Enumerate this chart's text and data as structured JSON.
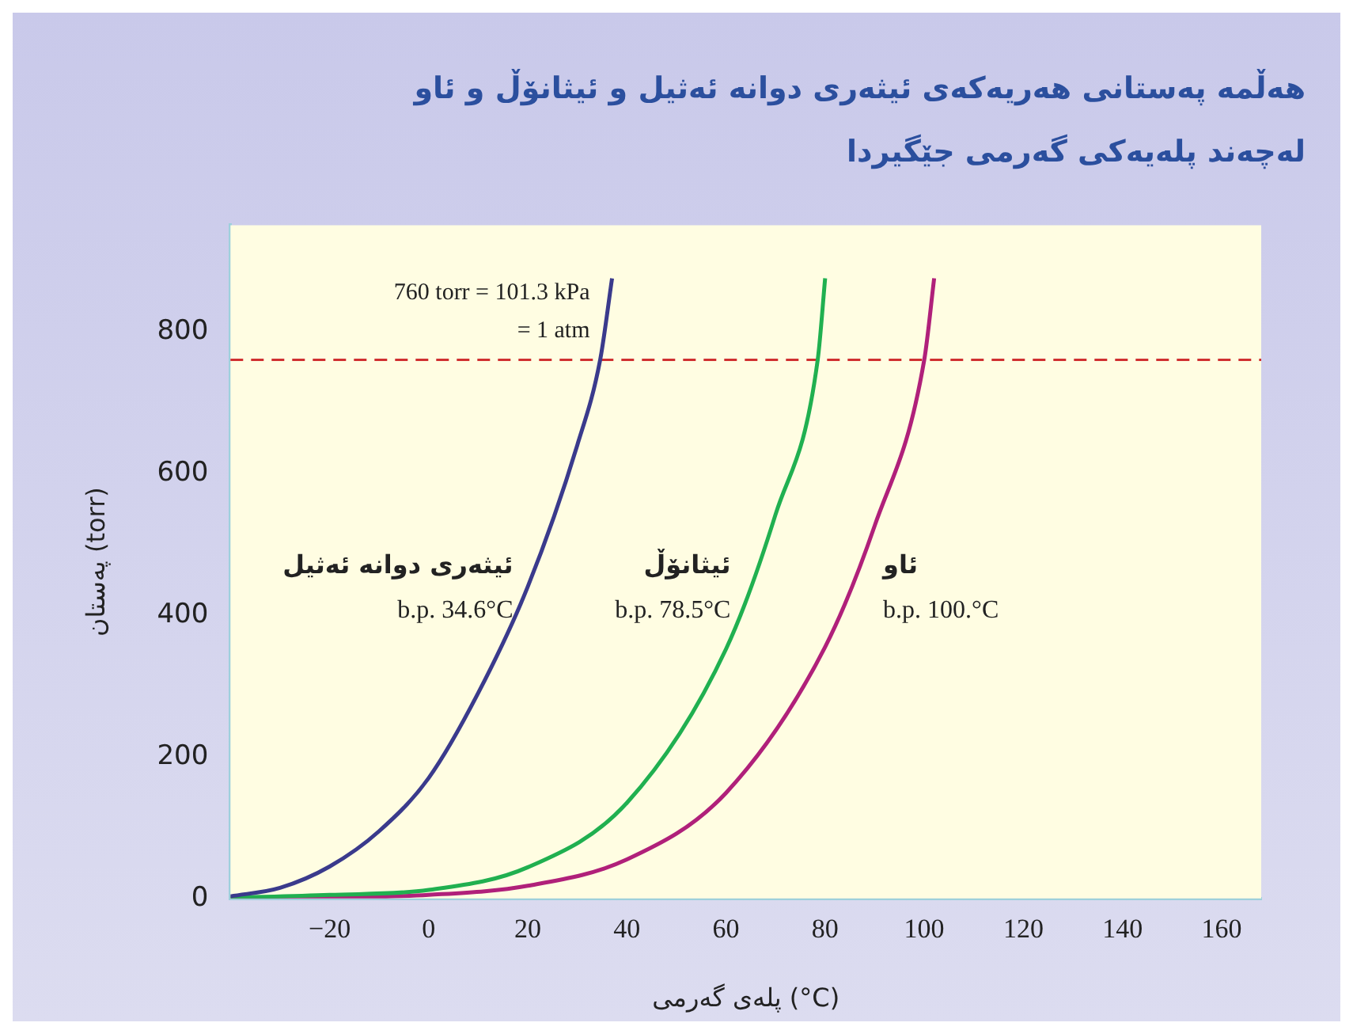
{
  "chart_data": {
    "type": "line",
    "title": "هەڵمە پەستانی هەریەکەی ئیثەری دوانە ئەثیل و ئیثانۆڵ و ئاو لەچەند پلەیەکی گەرمی جێگیردا",
    "xlabel": "پلەی گەرمی (°C)",
    "ylabel": "پەستان (torr)",
    "xlim": [
      -40,
      168
    ],
    "xticks": [
      -20,
      0,
      20,
      40,
      60,
      80,
      100,
      120,
      140,
      160
    ],
    "ylim": [
      0,
      950
    ],
    "yticks": [
      0,
      200,
      400,
      600,
      800
    ],
    "grid": false,
    "legend": false,
    "marker": "none",
    "line_style": "solid",
    "series": [
      {
        "name": "ئیثەری دوانە ئەثیل",
        "color": "#3a3a8c",
        "x": [
          -40,
          -30,
          -20,
          -10,
          0,
          10,
          20,
          30,
          34.6,
          37
        ],
        "values": [
          3,
          15,
          45,
          95,
          170,
          290,
          440,
          640,
          760,
          875
        ]
      },
      {
        "name": "ئیثانۆڵ",
        "color": "#20b050",
        "x": [
          -40,
          -20,
          0,
          20,
          40,
          60,
          70,
          78.5,
          80
        ],
        "values": [
          1,
          5,
          12,
          44,
          135,
          352,
          542,
          760,
          875
        ]
      },
      {
        "name": "ئاو",
        "color": "#b0207a",
        "x": [
          -40,
          -20,
          0,
          20,
          40,
          60,
          80,
          90,
          100,
          102
        ],
        "values": [
          0,
          1,
          5,
          18,
          55,
          149,
          355,
          526,
          760,
          875
        ]
      }
    ],
    "ref_lines": [
      {
        "axis": "y",
        "value": 760,
        "label": "760 torr = 101.3 kPa = 1 atm",
        "color": "#d03030",
        "line_style": "dashed"
      }
    ],
    "annotations": [
      "b.p. 34.6°C",
      "b.p. 78.5°C",
      "b.p. 100.°C"
    ]
  }
}
